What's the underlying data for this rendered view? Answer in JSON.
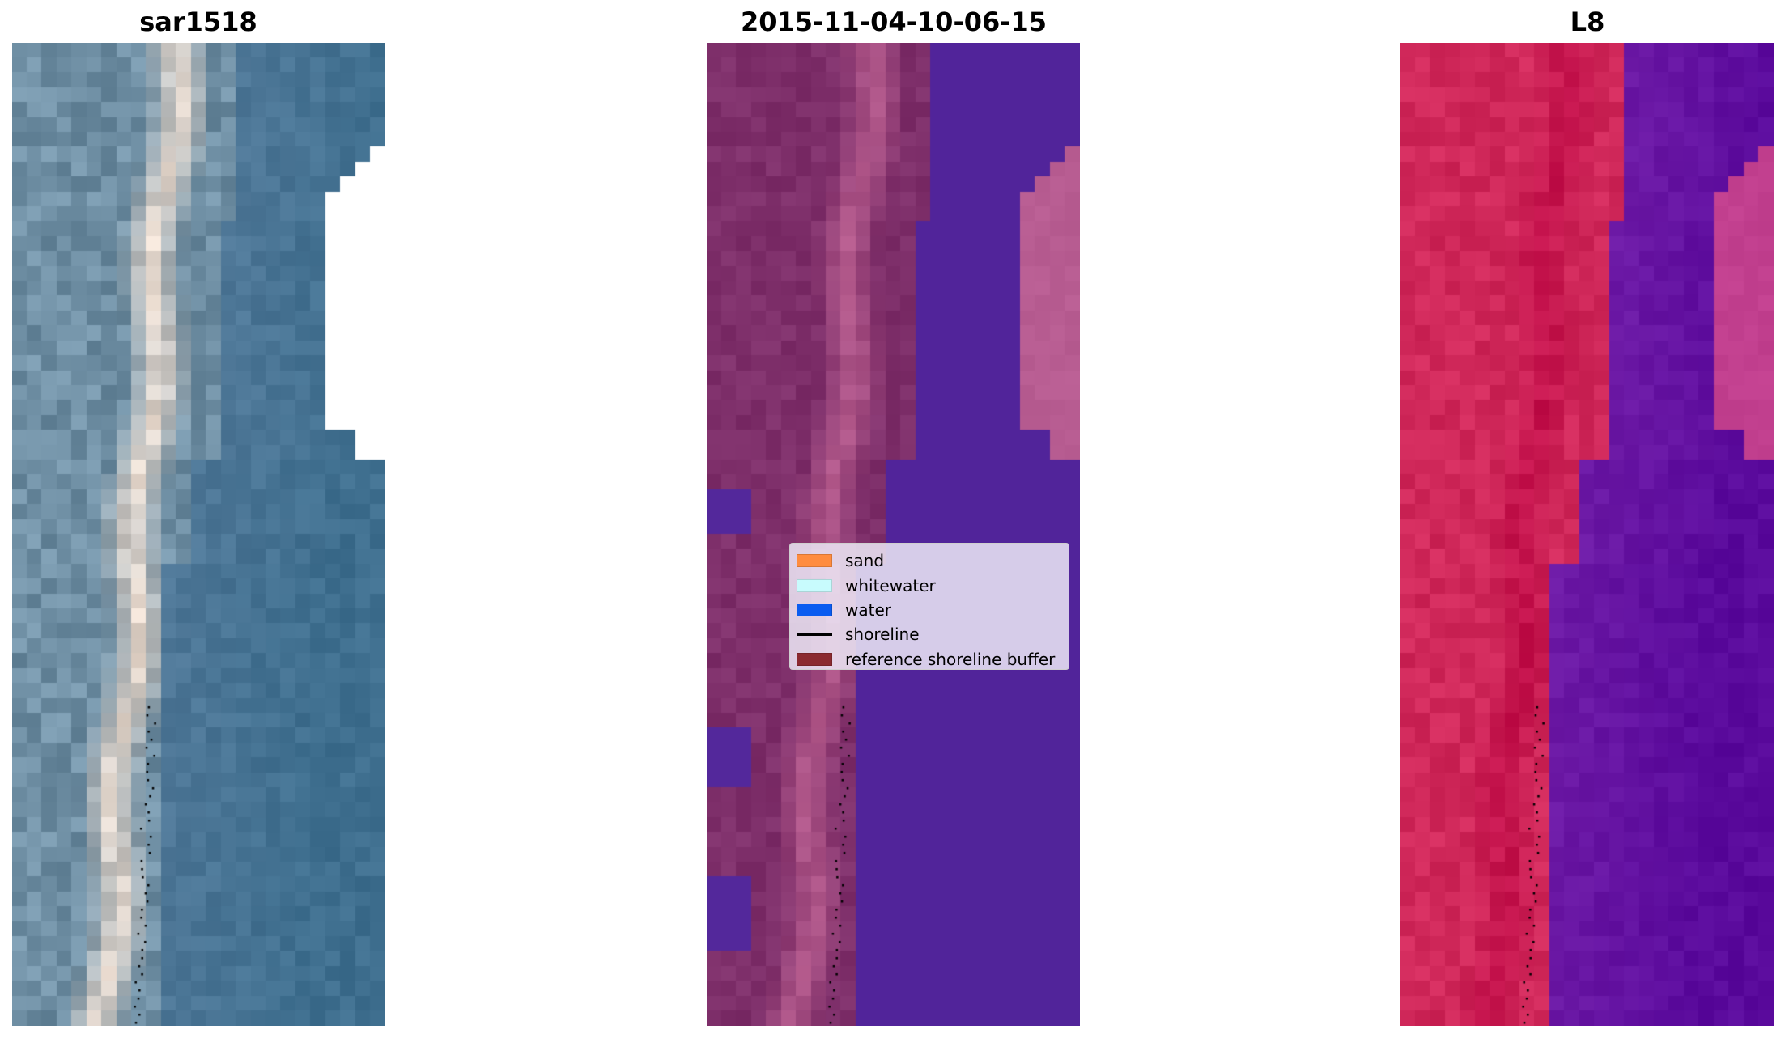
{
  "panels": [
    {
      "title": "sar1518",
      "kind": "rgb"
    },
    {
      "title": "2015-11-04-10-06-15",
      "kind": "classified"
    },
    {
      "title": "L8",
      "kind": "index"
    }
  ],
  "legend": [
    {
      "label": "sand",
      "color": "#ff8c3f",
      "type": "patch"
    },
    {
      "label": "whitewater",
      "color": "#c8fbfd",
      "type": "patch"
    },
    {
      "label": "water",
      "color": "#0a5cf0",
      "type": "patch"
    },
    {
      "label": "shoreline",
      "color": "#000000",
      "type": "line"
    },
    {
      "label": "reference shoreline buffer",
      "color": "#8b2a30",
      "type": "patch"
    }
  ],
  "colors": {
    "background": "#ffffff",
    "water_rgb": "#4a7593",
    "sand_rgb": "#e8d6c7",
    "classified_water": "#51249a",
    "classified_land": "#8a3b73",
    "index_land": "#cb1550",
    "index_water": "#5e0a9e"
  }
}
